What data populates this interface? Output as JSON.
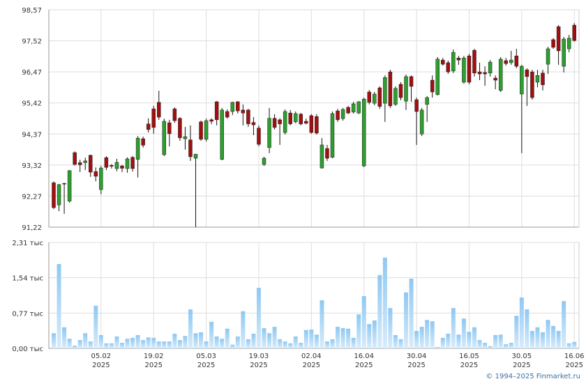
{
  "chart_data": {
    "type": "candlestick",
    "categories": [
      null,
      null,
      null,
      null,
      null,
      null,
      null,
      null,
      null,
      "05.02\n2025",
      null,
      null,
      null,
      null,
      null,
      null,
      null,
      null,
      null,
      "19.02\n2025",
      null,
      null,
      null,
      null,
      null,
      null,
      null,
      null,
      null,
      "05.03\n2025",
      null,
      null,
      null,
      null,
      null,
      null,
      null,
      null,
      null,
      "19.03\n2025",
      null,
      null,
      null,
      null,
      null,
      null,
      null,
      null,
      null,
      "02.04\n2025",
      null,
      null,
      null,
      null,
      null,
      null,
      null,
      null,
      null,
      "16.04\n2025",
      null,
      null,
      null,
      null,
      null,
      null,
      null,
      null,
      null,
      "30.04\n2025",
      null,
      null,
      null,
      null,
      null,
      null,
      null,
      null,
      null,
      "16.05\n2025",
      null,
      null,
      null,
      null,
      null,
      null,
      null,
      null,
      null,
      "30.05\n2025",
      null,
      null,
      null,
      null,
      null,
      null,
      null,
      null,
      null,
      "16.06\n2025"
    ],
    "open": [
      92.72,
      91.97,
      92.7,
      92.1,
      93.74,
      93.4,
      93.4,
      93.65,
      93.1,
      92.49,
      93.57,
      93.31,
      93.2,
      93.29,
      93.2,
      93.58,
      93.51,
      94.21,
      94.71,
      95.22,
      95.44,
      93.67,
      94.75,
      95.22,
      94.9,
      94.21,
      94.17,
      93.55,
      94.78,
      94.19,
      94.85,
      95.46,
      93.51,
      95.13,
      95.13,
      95.46,
      95.18,
      95.18,
      94.76,
      94.57,
      93.34,
      93.91,
      94.9,
      94.85,
      94.42,
      95.08,
      94.78,
      95.04,
      94.8,
      94.99,
      94.96,
      93.22,
      93.88,
      93.58,
      95.15,
      94.89,
      95.27,
      95.11,
      95.08,
      93.29,
      95.79,
      95.41,
      95.93,
      95.41,
      96.47,
      95.37,
      96.05,
      95.48,
      96.31,
      95.53,
      94.37,
      95.37,
      96.19,
      95.7,
      96.87,
      96.78,
      96.5,
      96.94,
      96.12,
      97.01,
      97.2,
      96.47,
      96.45,
      96.43,
      96.26,
      95.84,
      96.85,
      96.78,
      97.01,
      95.72,
      96.54,
      96.47,
      96.12,
      96.43,
      96.73,
      97.56,
      98.0,
      96.66,
      97.25,
      98.05
    ],
    "high": [
      92.77,
      92.68,
      92.72,
      93.15,
      93.78,
      93.5,
      93.57,
      93.67,
      93.24,
      93.29,
      93.62,
      93.35,
      93.53,
      93.33,
      93.58,
      93.62,
      94.3,
      94.28,
      94.9,
      95.32,
      95.83,
      94.89,
      94.85,
      95.27,
      94.94,
      94.61,
      94.66,
      93.69,
      94.82,
      94.89,
      94.9,
      95.48,
      95.25,
      95.2,
      95.46,
      95.48,
      95.37,
      95.22,
      94.94,
      94.66,
      93.6,
      95.25,
      95.04,
      94.9,
      95.2,
      95.18,
      95.13,
      95.08,
      94.89,
      95.04,
      95.04,
      94.23,
      94.0,
      95.13,
      95.22,
      95.25,
      95.32,
      95.46,
      95.48,
      95.6,
      95.86,
      95.79,
      95.98,
      96.35,
      96.54,
      95.98,
      96.12,
      96.38,
      96.35,
      95.6,
      95.25,
      95.65,
      96.35,
      96.97,
      96.94,
      96.85,
      97.23,
      97.01,
      97.01,
      97.08,
      97.25,
      96.78,
      96.66,
      96.87,
      96.35,
      96.97,
      96.94,
      97.18,
      97.25,
      96.71,
      96.59,
      96.54,
      96.54,
      96.54,
      97.32,
      97.61,
      98.05,
      97.65,
      97.72,
      98.12
    ],
    "low": [
      91.83,
      91.76,
      91.67,
      92.05,
      93.3,
      93.08,
      93.15,
      92.92,
      92.77,
      92.33,
      93.15,
      93.2,
      93.11,
      93.08,
      93.06,
      93.1,
      92.9,
      93.91,
      94.42,
      94.38,
      94.85,
      93.62,
      93.95,
      94.75,
      94.14,
      93.84,
      93.46,
      91.22,
      94.14,
      94.12,
      94.7,
      94.66,
      93.48,
      94.89,
      95.01,
      95.06,
      94.66,
      94.61,
      94.33,
      93.95,
      93.29,
      93.72,
      94.52,
      94.0,
      94.35,
      94.66,
      94.73,
      94.66,
      94.7,
      94.38,
      94.35,
      93.2,
      93.46,
      93.55,
      94.78,
      94.82,
      95.04,
      95.06,
      95.04,
      93.25,
      95.37,
      95.34,
      95.22,
      94.78,
      95.25,
      95.32,
      95.51,
      95.18,
      95.46,
      94.0,
      94.3,
      94.78,
      95.6,
      95.67,
      96.68,
      96.4,
      96.43,
      96.71,
      96.07,
      96.05,
      96.31,
      96.19,
      96.0,
      96.31,
      95.88,
      95.79,
      96.68,
      96.71,
      96.59,
      93.72,
      95.32,
      95.53,
      95.95,
      95.84,
      96.4,
      97.25,
      96.71,
      96.45,
      97.13,
      97.49
    ],
    "close": [
      91.88,
      92.66,
      92.69,
      93.13,
      93.34,
      93.33,
      93.46,
      93.08,
      92.94,
      93.22,
      93.24,
      93.28,
      93.41,
      93.21,
      93.53,
      93.2,
      94.23,
      93.99,
      94.52,
      94.59,
      94.94,
      94.8,
      94.38,
      94.82,
      94.24,
      94.28,
      93.6,
      93.69,
      94.19,
      94.82,
      94.8,
      94.85,
      95.18,
      94.94,
      95.44,
      95.15,
      95.08,
      94.71,
      94.68,
      94.02,
      93.55,
      94.9,
      94.59,
      94.71,
      95.13,
      94.71,
      95.06,
      94.71,
      94.73,
      94.42,
      94.4,
      94.0,
      93.55,
      95.06,
      94.85,
      95.2,
      95.08,
      95.39,
      95.46,
      95.55,
      95.44,
      95.72,
      95.3,
      96.28,
      95.32,
      95.91,
      95.6,
      96.31,
      95.98,
      95.13,
      95.18,
      95.6,
      95.79,
      96.9,
      96.73,
      96.47,
      97.13,
      96.87,
      96.94,
      96.12,
      96.43,
      96.4,
      96.4,
      96.8,
      96.19,
      96.9,
      96.75,
      96.87,
      96.66,
      96.66,
      96.31,
      95.6,
      96.35,
      96.03,
      97.25,
      97.3,
      97.18,
      97.58,
      97.61,
      97.53
    ],
    "up_color": "#2e9e2e",
    "down_color": "#a01010",
    "ylim": [
      91.22,
      98.57
    ],
    "yticks": [
      {
        "value": 91.22,
        "label": "91,22"
      },
      {
        "value": 92.27,
        "label": "92,27"
      },
      {
        "value": 93.32,
        "label": "93,32"
      },
      {
        "value": 94.37,
        "label": "94,37"
      },
      {
        "value": 95.42,
        "label": "95,42"
      },
      {
        "value": 96.47,
        "label": "96,47"
      },
      {
        "value": 97.52,
        "label": "97,52"
      },
      {
        "value": 98.57,
        "label": "98,57"
      }
    ],
    "grid": true,
    "volume": {
      "type": "bar",
      "color": "#8ec8f2",
      "values": [
        0.33,
        1.84,
        0.46,
        0.21,
        0.06,
        0.18,
        0.33,
        0.15,
        0.93,
        0.29,
        0.11,
        0.11,
        0.26,
        0.12,
        0.21,
        0.23,
        0.29,
        0.18,
        0.24,
        0.23,
        0.15,
        0.15,
        0.15,
        0.32,
        0.18,
        0.27,
        0.85,
        0.33,
        0.35,
        0.15,
        0.58,
        0.26,
        0.21,
        0.43,
        0.08,
        0.26,
        0.81,
        0.2,
        0.32,
        1.32,
        0.44,
        0.33,
        0.47,
        0.2,
        0.15,
        0.11,
        0.26,
        0.12,
        0.4,
        0.41,
        0.3,
        1.05,
        0.15,
        0.2,
        0.47,
        0.44,
        0.43,
        0.23,
        0.74,
        1.14,
        0.53,
        0.61,
        1.6,
        1.98,
        0.88,
        0.29,
        0.2,
        1.22,
        1.52,
        0.38,
        0.47,
        0.62,
        0.59,
        0.03,
        0.23,
        0.32,
        0.88,
        0.3,
        0.65,
        0.36,
        0.46,
        0.18,
        0.12,
        0.05,
        0.29,
        0.3,
        0.09,
        0.12,
        0.71,
        1.11,
        0.85,
        0.38,
        0.46,
        0.35,
        0.62,
        0.49,
        0.38,
        1.03,
        0.11,
        0.14
      ],
      "ylim": [
        0,
        2.31
      ],
      "yticks": [
        {
          "value": 0,
          "label": "0,00 тыс"
        },
        {
          "value": 0.77,
          "label": "0,77 тыс"
        },
        {
          "value": 1.54,
          "label": "1,54 тыс"
        },
        {
          "value": 2.31,
          "label": "2,31 тыс"
        }
      ]
    }
  },
  "footer": "© 1994–2025 Finmarket.ru"
}
